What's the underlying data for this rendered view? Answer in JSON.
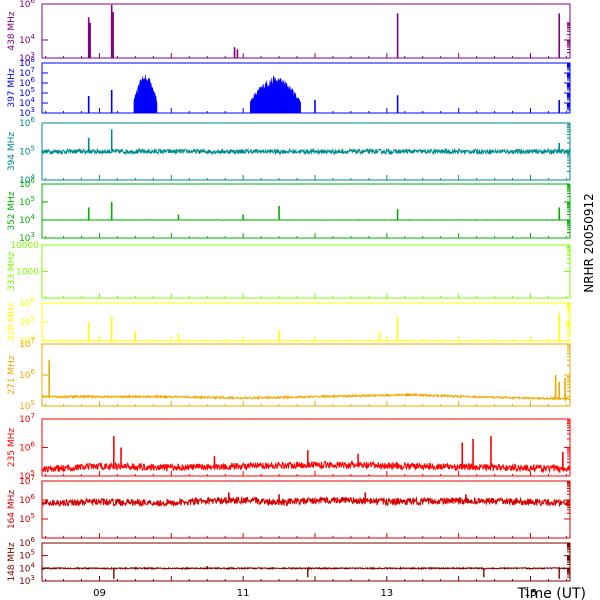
{
  "chart_data": {
    "type": "line",
    "title": "NRHR 20050912",
    "xlabel": "Time (UT)",
    "x_range_hours": [
      8.2,
      15.55
    ],
    "x_ticks": [
      {
        "hour": 9,
        "label": "09"
      },
      {
        "hour": 11,
        "label": "11"
      },
      {
        "hour": 13,
        "label": "13"
      },
      {
        "hour": 15,
        "label": "15"
      }
    ],
    "y_scale": "log",
    "panels": [
      {
        "name": "438 MHz",
        "color": "#800080",
        "ylim": [
          1000,
          1000000
        ],
        "y_ticks": [
          {
            "v": 1000,
            "label": "10^3"
          },
          {
            "v": 10000,
            "label": "10^4"
          },
          {
            "v": 1000000,
            "label": "10^6"
          }
        ],
        "baseline": 1000,
        "noise": 0.0,
        "trend": [],
        "spikes": [
          [
            8.85,
            180000
          ],
          [
            8.87,
            90000
          ],
          [
            9.17,
            900000
          ],
          [
            9.19,
            350000
          ],
          [
            10.88,
            4000
          ],
          [
            10.92,
            3000
          ],
          [
            13.15,
            300000
          ],
          [
            15.4,
            300000
          ]
        ],
        "bursts": []
      },
      {
        "name": "397 MHz",
        "color": "#0000ff",
        "ylim": [
          1000,
          100000000
        ],
        "y_ticks": [
          {
            "v": 1000,
            "label": "10^3"
          },
          {
            "v": 10000,
            "label": "10^4"
          },
          {
            "v": 100000,
            "label": "10^5"
          },
          {
            "v": 1000000,
            "label": "10^6"
          },
          {
            "v": 10000000,
            "label": "10^7"
          },
          {
            "v": 100000000,
            "label": "10^8"
          }
        ],
        "baseline": 1000,
        "noise": 0.0,
        "trend": [],
        "spikes": [
          [
            8.85,
            50000
          ],
          [
            9.17,
            200000
          ],
          [
            12.0,
            20000
          ],
          [
            13.15,
            60000
          ],
          [
            15.4,
            20000
          ]
        ],
        "bursts": [
          [
            9.48,
            9.8,
            8000000
          ],
          [
            11.1,
            11.8,
            5000000
          ]
        ]
      },
      {
        "name": "394 MHz",
        "color": "#008b8b",
        "ylim": [
          10000,
          1000000
        ],
        "y_ticks": [
          {
            "v": 10000,
            "label": "10^4"
          },
          {
            "v": 100000,
            "label": "10^5"
          },
          {
            "v": 1000000,
            "label": "10^6"
          }
        ],
        "baseline": 100000,
        "noise": 0.08,
        "trend": [],
        "spikes": [
          [
            8.85,
            300000
          ],
          [
            9.17,
            600000
          ],
          [
            15.4,
            200000
          ]
        ],
        "bursts": []
      },
      {
        "name": "352 MHz",
        "color": "#00b000",
        "ylim": [
          1000,
          1000000
        ],
        "y_ticks": [
          {
            "v": 1000,
            "label": "10^3"
          },
          {
            "v": 10000,
            "label": "10^4"
          },
          {
            "v": 100000,
            "label": "10^5"
          },
          {
            "v": 1000000,
            "label": "10^6"
          }
        ],
        "baseline": 10000,
        "noise": 0.01,
        "trend": [],
        "spikes": [
          [
            8.85,
            50000
          ],
          [
            9.17,
            100000
          ],
          [
            10.1,
            20000
          ],
          [
            11.0,
            20000
          ],
          [
            11.5,
            60000
          ],
          [
            13.15,
            40000
          ],
          [
            15.4,
            50000
          ]
        ],
        "bursts": []
      },
      {
        "name": "333 MHz",
        "color": "#7cfc00",
        "ylim": [
          100,
          10000
        ],
        "y_ticks": [
          {
            "v": 1000,
            "label": "1000"
          },
          {
            "v": 10000,
            "label": "10000"
          }
        ],
        "baseline": 0,
        "noise": 0.0,
        "trend": [],
        "spikes": [],
        "bursts": []
      },
      {
        "name": "328 MHz",
        "color": "#ffff00",
        "ylim": [
          10000,
          1000000
        ],
        "y_ticks": [
          {
            "v": 10000,
            "label": "10^4"
          },
          {
            "v": 100000,
            "label": "10^5"
          },
          {
            "v": 1000000,
            "label": "10^6"
          }
        ],
        "baseline": 10000,
        "noise": 0.01,
        "trend": [],
        "spikes": [
          [
            8.85,
            100000
          ],
          [
            9.17,
            200000
          ],
          [
            9.5,
            30000
          ],
          [
            10.1,
            25000
          ],
          [
            11.5,
            40000
          ],
          [
            12.9,
            30000
          ],
          [
            13.15,
            200000
          ],
          [
            15.4,
            300000
          ]
        ],
        "bursts": []
      },
      {
        "name": "271 MHz",
        "color": "#f0a800",
        "ylim": [
          100000,
          10000000
        ],
        "y_ticks": [
          {
            "v": 100000,
            "label": "10^5"
          },
          {
            "v": 1000000,
            "label": "10^6"
          },
          {
            "v": 10000000,
            "label": "10^7"
          }
        ],
        "baseline": 200000,
        "noise": 0.03,
        "trend": [
          [
            8.2,
            200000
          ],
          [
            10.0,
            200000
          ],
          [
            11.0,
            180000
          ],
          [
            12.5,
            210000
          ],
          [
            13.3,
            230000
          ],
          [
            14.5,
            190000
          ],
          [
            15.55,
            170000
          ]
        ],
        "spikes": [
          [
            8.3,
            3000000
          ],
          [
            15.35,
            1000000
          ],
          [
            15.4,
            600000
          ],
          [
            15.48,
            800000
          ]
        ],
        "bursts": []
      },
      {
        "name": "235 MHz",
        "color": "#ff0000",
        "ylim": [
          100000,
          10000000
        ],
        "y_ticks": [
          {
            "v": 100000,
            "label": "10^5"
          },
          {
            "v": 1000000,
            "label": "10^6"
          },
          {
            "v": 10000000,
            "label": "10^7"
          }
        ],
        "baseline": 200000,
        "noise": 0.12,
        "trend": [
          [
            8.2,
            170000
          ],
          [
            9.0,
            220000
          ],
          [
            10.0,
            200000
          ],
          [
            11.0,
            220000
          ],
          [
            12.0,
            250000
          ],
          [
            13.0,
            230000
          ],
          [
            14.0,
            210000
          ],
          [
            15.0,
            190000
          ],
          [
            15.55,
            180000
          ]
        ],
        "spikes": [
          [
            9.2,
            2500000
          ],
          [
            9.3,
            1000000
          ],
          [
            10.6,
            500000
          ],
          [
            11.9,
            800000
          ],
          [
            12.6,
            600000
          ],
          [
            14.05,
            1500000
          ],
          [
            14.2,
            2000000
          ],
          [
            14.45,
            2500000
          ],
          [
            15.45,
            700000
          ]
        ],
        "bursts": []
      },
      {
        "name": "164 MHz",
        "color": "#d40000",
        "ylim": [
          10000,
          10000000
        ],
        "y_ticks": [
          {
            "v": 100000,
            "label": "10^5"
          },
          {
            "v": 1000000,
            "label": "10^6"
          },
          {
            "v": 10000000,
            "label": "10^7"
          }
        ],
        "baseline": 800000,
        "noise": 0.18,
        "trend": [
          [
            8.2,
            700000
          ],
          [
            9.0,
            800000
          ],
          [
            10.0,
            700000
          ],
          [
            10.8,
            1000000
          ],
          [
            11.5,
            800000
          ],
          [
            12.3,
            1000000
          ],
          [
            13.0,
            800000
          ],
          [
            14.0,
            900000
          ],
          [
            15.0,
            800000
          ],
          [
            15.55,
            700000
          ]
        ],
        "spikes": [
          [
            10.8,
            2500000
          ],
          [
            11.5,
            2000000
          ],
          [
            12.7,
            2500000
          ],
          [
            14.1,
            2000000
          ]
        ],
        "bursts": []
      },
      {
        "name": "148 MHz",
        "color": "#7f0000",
        "ylim": [
          1000,
          1000000
        ],
        "y_ticks": [
          {
            "v": 1000,
            "label": "10^3"
          },
          {
            "v": 10000,
            "label": "10^4"
          },
          {
            "v": 100000,
            "label": "10^5"
          },
          {
            "v": 1000000,
            "label": "10^6"
          }
        ],
        "baseline": 10000,
        "noise": 0.05,
        "trend": [],
        "spikes": [
          [
            10.5,
            15000
          ]
        ],
        "dips": [
          [
            9.2,
            1500
          ],
          [
            11.9,
            2000
          ],
          [
            14.35,
            2000
          ],
          [
            15.4,
            1500
          ]
        ],
        "bursts": []
      }
    ]
  }
}
